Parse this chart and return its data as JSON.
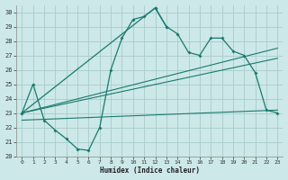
{
  "title": "",
  "xlabel": "Humidex (Indice chaleur)",
  "bg_color": "#cce8e8",
  "grid_color": "#aacccc",
  "line_color": "#1a7a6e",
  "xlim": [
    -0.5,
    23.5
  ],
  "ylim": [
    20,
    30.5
  ],
  "xtick_labels": [
    "0",
    "1",
    "2",
    "3",
    "4",
    "5",
    "6",
    "7",
    "8",
    "9",
    "10",
    "11",
    "12",
    "13",
    "14",
    "15",
    "16",
    "17",
    "18",
    "19",
    "20",
    "21",
    "22",
    "23"
  ],
  "xticks": [
    0,
    1,
    2,
    3,
    4,
    5,
    6,
    7,
    8,
    9,
    10,
    11,
    12,
    13,
    14,
    15,
    16,
    17,
    18,
    19,
    20,
    21,
    22,
    23
  ],
  "yticks": [
    20,
    21,
    22,
    23,
    24,
    25,
    26,
    27,
    28,
    29,
    30
  ],
  "curve1_x": [
    0,
    1,
    2,
    3,
    4,
    5,
    6,
    7,
    8,
    9,
    10,
    11,
    12,
    13
  ],
  "curve1_y": [
    23.0,
    25.0,
    22.5,
    21.8,
    21.2,
    20.5,
    20.4,
    22.0,
    26.0,
    28.2,
    29.5,
    29.7,
    30.3,
    29.0
  ],
  "curve2_x": [
    0,
    12,
    13,
    14,
    15,
    16,
    17,
    18,
    19,
    20,
    21,
    22,
    23
  ],
  "curve2_y": [
    23.0,
    30.3,
    29.0,
    28.5,
    27.2,
    27.0,
    28.2,
    28.2,
    27.3,
    27.0,
    25.8,
    23.2,
    23.0
  ],
  "trend1_x": [
    0,
    23
  ],
  "trend1_y": [
    23.0,
    27.5
  ],
  "trend2_x": [
    0,
    23
  ],
  "trend2_y": [
    23.0,
    26.8
  ],
  "trend3_x": [
    0,
    23
  ],
  "trend3_y": [
    22.5,
    23.2
  ]
}
